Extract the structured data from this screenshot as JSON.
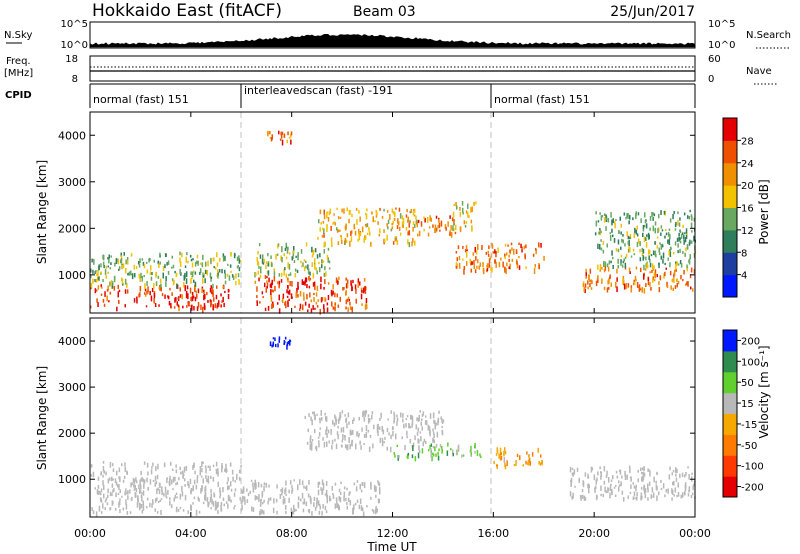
{
  "header": {
    "station": "Hokkaido East (fitACF)",
    "beam": "Beam 03",
    "date": "25/Jun/2017"
  },
  "noise_panel": {
    "left_label": "N.Sky",
    "right_label": "N.Search",
    "left_ticks": [
      "10^5",
      "10^0"
    ],
    "right_ticks": [
      "10^5",
      "10^0"
    ]
  },
  "freq_panel": {
    "left_label_line1": "Freq.",
    "left_label_line2": "[MHz]",
    "left_ticks": [
      "18",
      "8"
    ],
    "right_label": "Nave",
    "right_ticks": [
      "60",
      "0"
    ]
  },
  "cpid": {
    "label": "CPID",
    "segments": [
      {
        "text": "normal (fast) 151",
        "start": 0,
        "end": 6
      },
      {
        "text": "interleavedscan (fast) -191",
        "start": 6,
        "end": 16
      },
      {
        "text": "normal (fast) 151",
        "start": 16,
        "end": 24
      }
    ]
  },
  "colors": {
    "power_scale": [
      "#0018ff",
      "#1f3fa0",
      "#2e7d5b",
      "#68a860",
      "#f2c200",
      "#f09000",
      "#ee5000",
      "#e40000"
    ],
    "velocity_scale": [
      "#e40000",
      "#ff3a00",
      "#ff7a00",
      "#f5a800",
      "#b8b8b8",
      "#60d02e",
      "#2e8c50",
      "#0018ff"
    ]
  },
  "power_colorbar": {
    "title": "Power [dB]",
    "ticks": [
      "28",
      "24",
      "20",
      "16",
      "12",
      "8",
      "4"
    ]
  },
  "velocity_colorbar": {
    "title": "Velocity [m s⁻¹]",
    "ticks": [
      "200",
      "100",
      "50",
      "15",
      "-15",
      "-50",
      "-100",
      "-200"
    ]
  },
  "chart_data": [
    {
      "type": "heatmap",
      "quantity": "Power",
      "ylabel": "Slant Range [km]",
      "ylim": [
        180,
        4500
      ],
      "xlim": [
        0,
        24
      ],
      "y_ticks": [
        1000,
        2000,
        3000,
        4000
      ],
      "vlines": [
        6,
        16
      ],
      "regions": [
        {
          "t0": 0.0,
          "t1": 5.5,
          "r0": 300,
          "r1": 800,
          "power": 28
        },
        {
          "t0": 0.0,
          "t1": 6.0,
          "r0": 800,
          "r1": 1500,
          "power": 14
        },
        {
          "t0": 6.5,
          "t1": 11.0,
          "r0": 250,
          "r1": 1000,
          "power": 27
        },
        {
          "t0": 6.5,
          "t1": 9.5,
          "r0": 1000,
          "r1": 1700,
          "power": 15
        },
        {
          "t0": 7.0,
          "t1": 8.0,
          "r0": 3900,
          "r1": 4100,
          "power": 24
        },
        {
          "t0": 9.0,
          "t1": 13.0,
          "r0": 1700,
          "r1": 2450,
          "power": 20
        },
        {
          "t0": 12.5,
          "t1": 14.5,
          "r0": 1900,
          "r1": 2300,
          "power": 24
        },
        {
          "t0": 14.3,
          "t1": 15.3,
          "r0": 2000,
          "r1": 2600,
          "power": 18
        },
        {
          "t0": 14.5,
          "t1": 18.0,
          "r0": 1100,
          "r1": 1700,
          "power": 24
        },
        {
          "t0": 19.5,
          "t1": 24.0,
          "r0": 700,
          "r1": 1200,
          "power": 24
        },
        {
          "t0": 20.0,
          "t1": 24.0,
          "r0": 1200,
          "r1": 2400,
          "power": 13
        }
      ]
    },
    {
      "type": "heatmap",
      "quantity": "Velocity",
      "ylabel": "Slant Range [km]",
      "xlabel": "Time UT",
      "ylim": [
        180,
        4500
      ],
      "xlim": [
        0,
        24
      ],
      "y_ticks": [
        1000,
        2000,
        3000,
        4000
      ],
      "x_ticks": [
        "00:00",
        "04:00",
        "08:00",
        "12:00",
        "16:00",
        "20:00",
        "00:00"
      ],
      "vlines": [
        6,
        16
      ],
      "regions": [
        {
          "t0": 0.0,
          "t1": 6.0,
          "r0": 300,
          "r1": 1400,
          "velocity": 0
        },
        {
          "t0": 6.0,
          "t1": 11.5,
          "r0": 300,
          "r1": 1000,
          "velocity": 0
        },
        {
          "t0": 7.0,
          "t1": 8.0,
          "r0": 3900,
          "r1": 4100,
          "velocity": 210
        },
        {
          "t0": 8.5,
          "t1": 14.0,
          "r0": 1700,
          "r1": 2500,
          "velocity": 0
        },
        {
          "t0": 12.0,
          "t1": 15.5,
          "r0": 1500,
          "r1": 1800,
          "velocity": 35
        },
        {
          "t0": 16.0,
          "t1": 18.0,
          "r0": 1300,
          "r1": 1700,
          "velocity": -40
        },
        {
          "t0": 19.0,
          "t1": 24.0,
          "r0": 600,
          "r1": 1300,
          "velocity": 0
        }
      ]
    }
  ]
}
